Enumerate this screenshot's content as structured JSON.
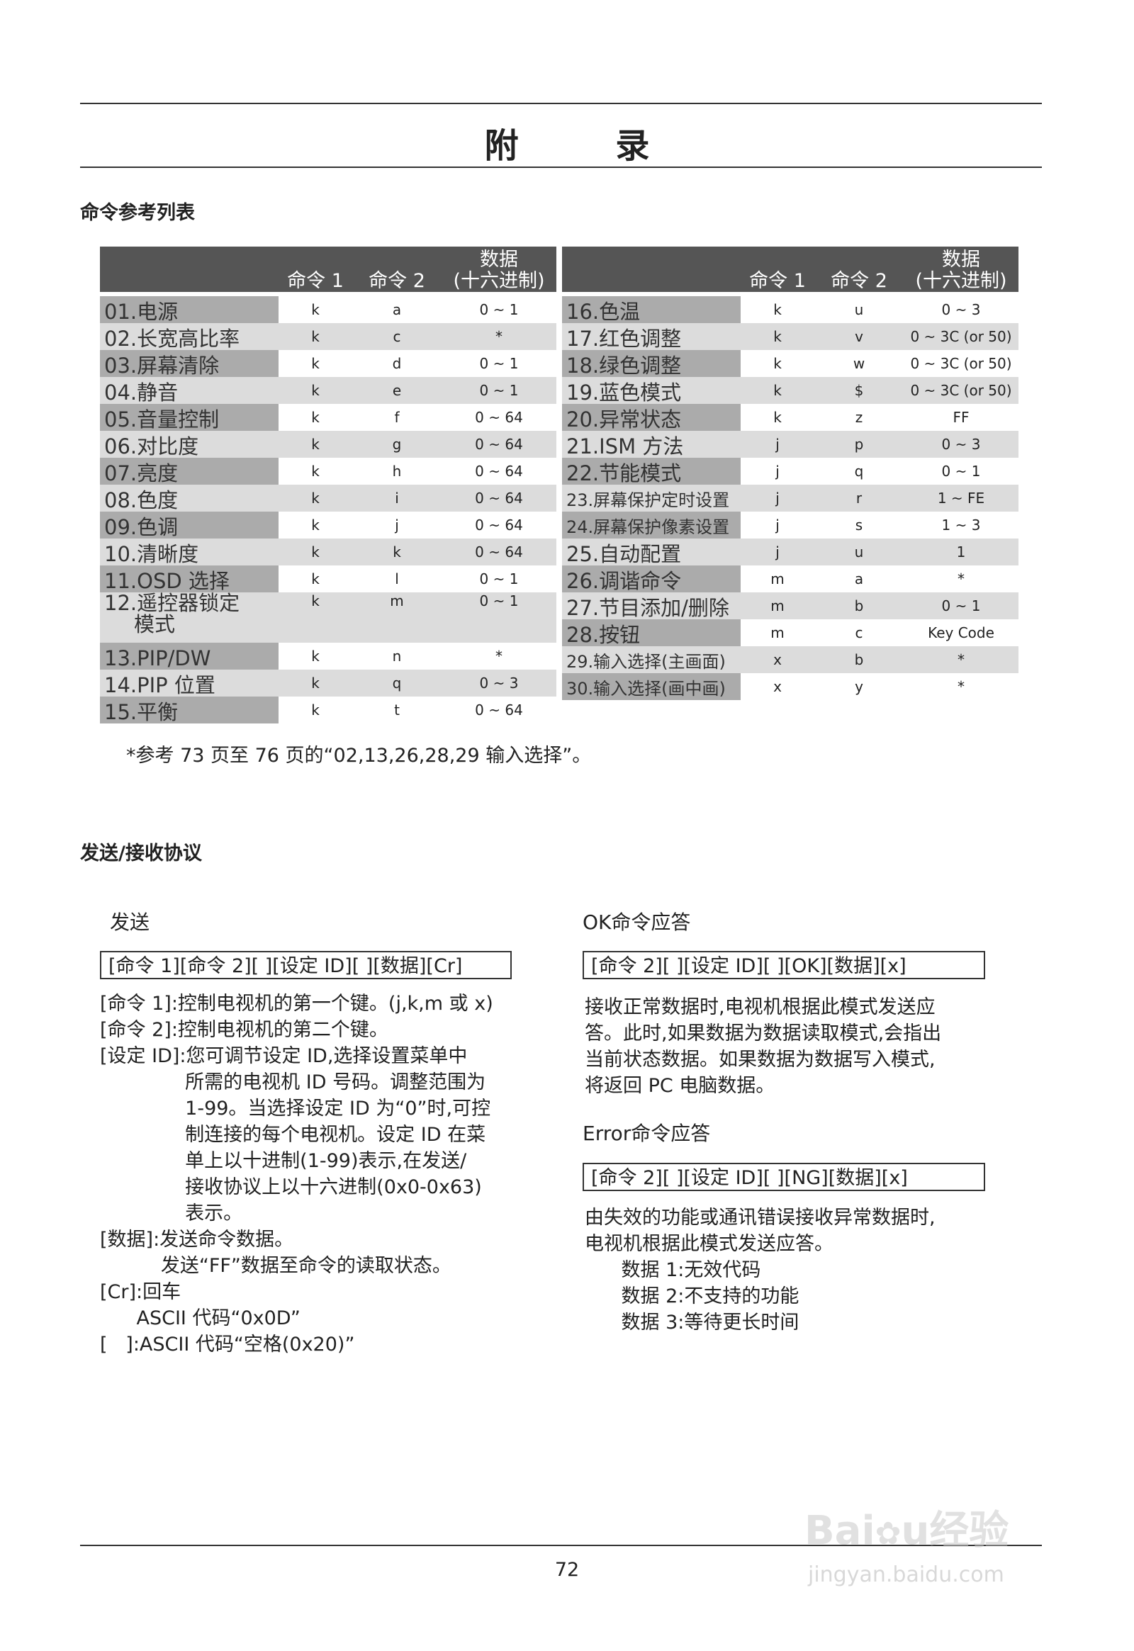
{
  "title": "附 录",
  "section1": "命令参考列表",
  "table": {
    "headers": {
      "cmd1": "命令 1",
      "cmd2": "命令 2",
      "data": "数据",
      "data_sub": "(十六进制)"
    },
    "left": [
      {
        "label": "01.电源",
        "c1": "k",
        "c2": "a",
        "data": "0 ~ 1"
      },
      {
        "label": "02.长宽高比率",
        "c1": "k",
        "c2": "c",
        "data": "*"
      },
      {
        "label": "03.屏幕清除",
        "c1": "k",
        "c2": "d",
        "data": "0 ~ 1"
      },
      {
        "label": "04.静音",
        "c1": "k",
        "c2": "e",
        "data": "0 ~ 1"
      },
      {
        "label": "05.音量控制",
        "c1": "k",
        "c2": "f",
        "data": "0 ~ 64"
      },
      {
        "label": "06.对比度",
        "c1": "k",
        "c2": "g",
        "data": "0 ~ 64"
      },
      {
        "label": "07.亮度",
        "c1": "k",
        "c2": "h",
        "data": "0 ~ 64"
      },
      {
        "label": "08.色度",
        "c1": "k",
        "c2": "i",
        "data": "0 ~ 64"
      },
      {
        "label": "09.色调",
        "c1": "k",
        "c2": "j",
        "data": "0 ~ 64"
      },
      {
        "label": "10.清晰度",
        "c1": "k",
        "c2": "k",
        "data": "0 ~ 64"
      },
      {
        "label": "11.OSD 选择",
        "c1": "k",
        "c2": "l",
        "data": "0 ~ 1"
      },
      {
        "label": "12.遥控器锁定",
        "label2": "模式",
        "c1": "k",
        "c2": "m",
        "data": "0 ~ 1"
      },
      {
        "label": "13.PIP/DW",
        "c1": "k",
        "c2": "n",
        "data": "*"
      },
      {
        "label": "14.PIP 位置",
        "c1": "k",
        "c2": "q",
        "data": "0 ~ 3"
      },
      {
        "label": "15.平衡",
        "c1": "k",
        "c2": "t",
        "data": "0 ~ 64"
      }
    ],
    "right": [
      {
        "label": "16.色温",
        "c1": "k",
        "c2": "u",
        "data": "0 ~ 3"
      },
      {
        "label": "17.红色调整",
        "c1": "k",
        "c2": "v",
        "data": "0 ~ 3C (or 50)"
      },
      {
        "label": "18.绿色调整",
        "c1": "k",
        "c2": "w",
        "data": "0 ~ 3C (or 50)"
      },
      {
        "label": "19.蓝色模式",
        "c1": "k",
        "c2": "$",
        "data": "0 ~ 3C (or 50)"
      },
      {
        "label": "20.异常状态",
        "c1": "k",
        "c2": "z",
        "data": "FF"
      },
      {
        "label": "21.ISM 方法",
        "c1": "j",
        "c2": "p",
        "data": "0 ~ 3"
      },
      {
        "label": "22.节能模式",
        "c1": "j",
        "c2": "q",
        "data": "0 ~ 1"
      },
      {
        "label": "23.屏幕保护定时设置",
        "c1": "j",
        "c2": "r",
        "data": "1 ~ FE",
        "small": true
      },
      {
        "label": "24.屏幕保护像素设置",
        "c1": "j",
        "c2": "s",
        "data": "1 ~ 3",
        "small": true
      },
      {
        "label": "25.自动配置",
        "c1": "j",
        "c2": "u",
        "data": "1"
      },
      {
        "label": "26.调谐命令",
        "c1": "m",
        "c2": "a",
        "data": "*"
      },
      {
        "label": "27.节目添加/删除",
        "c1": "m",
        "c2": "b",
        "data": "0 ~ 1"
      },
      {
        "label": "28.按钮",
        "c1": "m",
        "c2": "c",
        "data": "Key Code"
      },
      {
        "label": "29.输入选择(主画面)",
        "c1": "x",
        "c2": "b",
        "data": "*",
        "small": true
      },
      {
        "label": "30.输入选择(画中画)",
        "c1": "x",
        "c2": "y",
        "data": "*",
        "small": true
      }
    ]
  },
  "footnote": "*参考 73 页至 76 页的“02,13,26,28,29 输入选择”。",
  "section2": "发送/接收协议",
  "send": {
    "heading": "发送",
    "format": "[命令 1][命令 2][  ][设定 ID][  ][数据][Cr]",
    "lines": [
      "[命令 1]:控制电视机的第一个键。(j,k,m 或 x)",
      "[命令 2]:控制电视机的第二个键。",
      "[设定 ID]:您可调节设定 ID,选择设置菜单中",
      "              所需的电视机 ID 号码。调整范围为",
      "              1-99。当选择设定 ID 为“0”时,可控",
      "              制连接的每个电视机。设定 ID 在菜",
      "              单上以十进制(1-99)表示,在发送/",
      "              接收协议上以十六进制(0x0-0x63)",
      "              表示。",
      "[数据]:发送命令数据。",
      "          发送“FF”数据至命令的读取状态。",
      "[Cr]:回车",
      "      ASCII 代码“0x0D”",
      "[   ]:ASCII 代码“空格(0x20)”"
    ]
  },
  "ok": {
    "heading": "OK命令应答",
    "format": "[命令 2][  ][设定 ID][  ][OK][数据][x]",
    "lines": [
      "接收正常数据时,电视机根据此模式发送应",
      "答。此时,如果数据为数据读取模式,会指出",
      "当前状态数据。如果数据为数据写入模式,",
      "将返回 PC 电脑数据。"
    ]
  },
  "error": {
    "heading": "Error命令应答",
    "format": "[命令 2][  ][设定 ID][  ][NG][数据][x]",
    "lines": [
      "由失效的功能或通讯错误接收异常数据时,",
      "电视机根据此模式发送应答。",
      "      数据 1:无效代码",
      "      数据 2:不支持的功能",
      "      数据 3:等待更长时间"
    ]
  },
  "page_number": "72",
  "watermark": {
    "text": "Baidu经验",
    "url_text": "jingyan.baidu.com"
  }
}
